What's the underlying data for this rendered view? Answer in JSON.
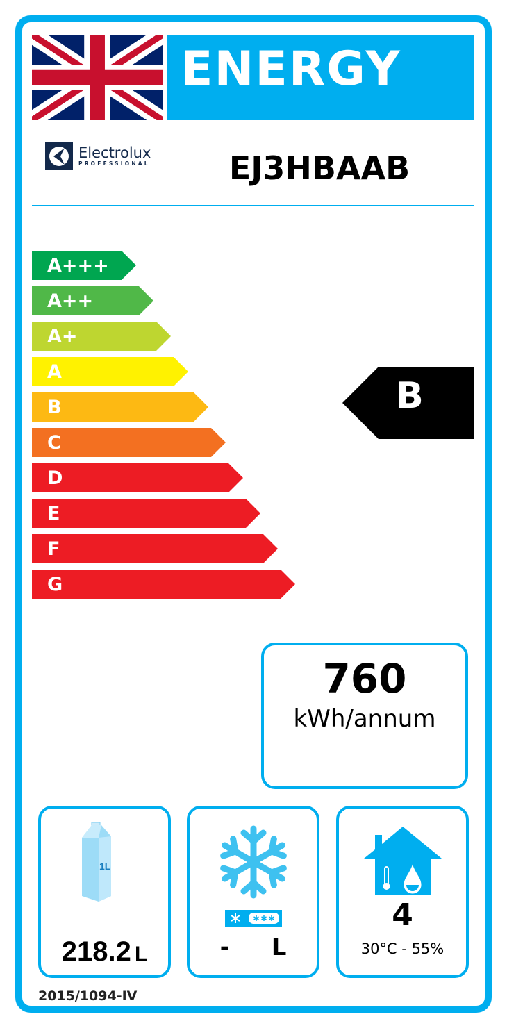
{
  "header": {
    "title": "ENERGY",
    "flag_icon": "union-jack-flag"
  },
  "brand": {
    "name": "Electrolux",
    "sub": "PROFESSIONAL"
  },
  "model": "EJ3HBAAB",
  "scale": [
    {
      "label": "A+++",
      "color": "#00A650"
    },
    {
      "label": "A++",
      "color": "#50B848"
    },
    {
      "label": "A+",
      "color": "#BED630"
    },
    {
      "label": "A",
      "color": "#FFF200"
    },
    {
      "label": "B",
      "color": "#FDB913"
    },
    {
      "label": "C",
      "color": "#F37021"
    },
    {
      "label": "D",
      "color": "#ED1C24"
    },
    {
      "label": "E",
      "color": "#ED1C24"
    },
    {
      "label": "F",
      "color": "#ED1C24"
    },
    {
      "label": "G",
      "color": "#ED1C24"
    }
  ],
  "rating": "B",
  "consumption": {
    "value": "760",
    "unit": "kWh/annum"
  },
  "chill": {
    "icon": "milk-carton-icon",
    "carton_label": "1L",
    "value": "218.2",
    "unit": "L"
  },
  "frozen": {
    "icon": "snowflake-icon",
    "value": "-",
    "unit": "L"
  },
  "climate": {
    "icon": "house-climate-icon",
    "class": "4",
    "conditions": "30°C - 55%"
  },
  "regulation": "2015/1094-IV",
  "colors": {
    "accent": "#00AEEF"
  }
}
